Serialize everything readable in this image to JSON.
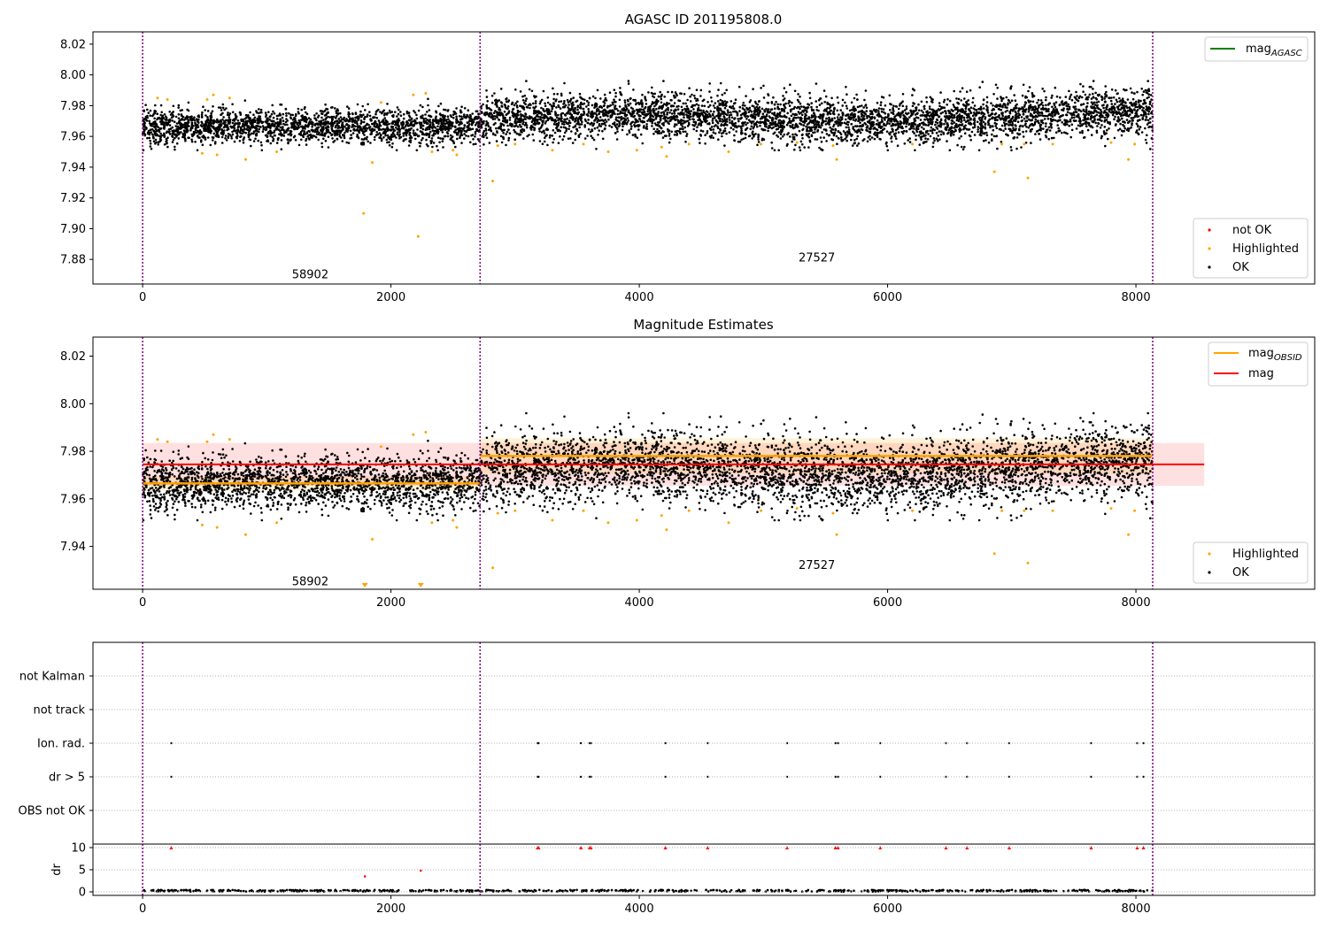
{
  "chart_data": [
    {
      "type": "scatter",
      "title": "AGASC ID 201195808.0",
      "xlabel": "",
      "ylabel": "",
      "xlim": [
        -400,
        9440
      ],
      "ylim": [
        7.864,
        8.028
      ],
      "xticks": [
        0,
        2000,
        4000,
        6000,
        8000
      ],
      "yticks": [
        7.88,
        7.9,
        7.92,
        7.94,
        7.96,
        7.98,
        8.0,
        8.02
      ],
      "ytick_format": 2,
      "vlines": [
        0,
        2718,
        8135
      ],
      "annotations": [
        {
          "x": 1350,
          "y": 7.8705,
          "text": "58902"
        },
        {
          "x": 5430,
          "y": 7.8815,
          "text": "27527"
        }
      ],
      "legends": [
        {
          "position": "top-right",
          "entries": [
            {
              "label": "mag",
              "subscript": "AGASC",
              "style": "line",
              "color": "#008000"
            }
          ]
        },
        {
          "position": "bottom-right",
          "entries": [
            {
              "label": "not OK",
              "style": "dot",
              "color": "#ff0000"
            },
            {
              "label": "Highlighted",
              "style": "dot",
              "color": "#ffa500"
            },
            {
              "label": "OK",
              "style": "dot",
              "color": "#000000"
            }
          ]
        }
      ],
      "ok_segments": [
        {
          "x0": 0,
          "x1": 2718,
          "mean": 7.9665,
          "sd": 0.0055
        },
        {
          "x0": 2718,
          "x1": 8135,
          "mean": 7.971,
          "sd": 0.0075
        }
      ],
      "highlighted_points": [
        [
          120,
          7.985
        ],
        [
          200,
          7.984
        ],
        [
          480,
          7.949
        ],
        [
          520,
          7.984
        ],
        [
          570,
          7.987
        ],
        [
          600,
          7.948
        ],
        [
          700,
          7.985
        ],
        [
          830,
          7.945
        ],
        [
          1080,
          7.95
        ],
        [
          1780,
          7.91
        ],
        [
          1850,
          7.943
        ],
        [
          1920,
          7.982
        ],
        [
          2180,
          7.987
        ],
        [
          2220,
          7.895
        ],
        [
          2280,
          7.988
        ],
        [
          2330,
          7.95
        ],
        [
          2500,
          7.951
        ],
        [
          2530,
          7.948
        ],
        [
          2820,
          7.931
        ],
        [
          2860,
          7.954
        ],
        [
          3000,
          7.955
        ],
        [
          3300,
          7.951
        ],
        [
          3550,
          7.955
        ],
        [
          3750,
          7.95
        ],
        [
          3980,
          7.951
        ],
        [
          4180,
          7.953
        ],
        [
          4220,
          7.947
        ],
        [
          4400,
          7.955
        ],
        [
          4720,
          7.95
        ],
        [
          4980,
          7.955
        ],
        [
          5270,
          7.956
        ],
        [
          5560,
          7.954
        ],
        [
          5590,
          7.945
        ],
        [
          6200,
          7.955
        ],
        [
          6860,
          7.937
        ],
        [
          6920,
          7.955
        ],
        [
          7100,
          7.955
        ],
        [
          7130,
          7.933
        ],
        [
          7330,
          7.955
        ],
        [
          7800,
          7.956
        ],
        [
          7940,
          7.945
        ],
        [
          7990,
          7.955
        ]
      ]
    },
    {
      "type": "scatter",
      "title": "Magnitude Estimates",
      "xlabel": "",
      "ylabel": "",
      "xlim": [
        -400,
        9440
      ],
      "ylim": [
        7.922,
        8.028
      ],
      "xticks": [
        0,
        2000,
        4000,
        6000,
        8000
      ],
      "yticks": [
        7.94,
        7.96,
        7.98,
        8.0,
        8.02
      ],
      "ytick_format": 2,
      "vlines": [
        0,
        2718,
        8135
      ],
      "mag": 7.9745,
      "mag_band": [
        7.9655,
        7.9835
      ],
      "mag_band_x": [
        0,
        8550
      ],
      "mag_obsid": [
        {
          "x0": 0,
          "x1": 2718,
          "value": 7.9665,
          "band": [
            7.9635,
            7.9695
          ]
        },
        {
          "x0": 2718,
          "x1": 8135,
          "value": 7.978,
          "band": [
            7.9705,
            7.9855
          ]
        }
      ],
      "annotations": [
        {
          "x": 1350,
          "y": 7.9255,
          "text": "58902"
        },
        {
          "x": 5430,
          "y": 7.9325,
          "text": "27527"
        }
      ],
      "legends": [
        {
          "position": "top-right",
          "entries": [
            {
              "label": "mag",
              "subscript": "OBSID",
              "style": "line",
              "color": "#ffa500"
            },
            {
              "label": "mag",
              "style": "line",
              "color": "#ff0000"
            }
          ]
        },
        {
          "position": "bottom-right",
          "entries": [
            {
              "label": "Highlighted",
              "style": "dot",
              "color": "#ffa500"
            },
            {
              "label": "OK",
              "style": "dot",
              "color": "#000000"
            }
          ]
        }
      ],
      "clipped_markers": [
        [
          1790,
          7.922
        ],
        [
          2240,
          7.922
        ]
      ]
    },
    {
      "type": "scatter",
      "title": "",
      "xlabel": "",
      "ylabel": "",
      "xlim": [
        -400,
        9440
      ],
      "categories": [
        "OBS not OK",
        "dr > 5",
        "Ion. rad.",
        "not track",
        "not Kalman"
      ],
      "vlines": [
        0,
        2718,
        8135
      ],
      "flag_x": [
        230,
        3180,
        3190,
        3530,
        3600,
        3610,
        4210,
        4550,
        5190,
        5580,
        5600,
        5940,
        6470,
        6640,
        6980,
        7640,
        8010,
        8060
      ],
      "flags": [
        {
          "category": "Ion. rad.",
          "x_ref": "flag_x"
        },
        {
          "category": "dr > 5",
          "x_ref": "flag_x"
        }
      ]
    },
    {
      "type": "scatter",
      "title": "",
      "xlabel": "",
      "ylabel": "dr",
      "xlim": [
        -400,
        9440
      ],
      "ylim": [
        -0.8,
        10.8
      ],
      "xticks": [
        0,
        2000,
        4000,
        6000,
        8000
      ],
      "yticks": [
        0,
        5,
        10
      ],
      "vlines": [
        0,
        2718,
        8135
      ],
      "capped_markers_y": 10,
      "red_points": [
        [
          1790,
          3.5
        ],
        [
          2240,
          4.8
        ]
      ],
      "baseline_dr": [
        0.05,
        0.45
      ]
    }
  ]
}
